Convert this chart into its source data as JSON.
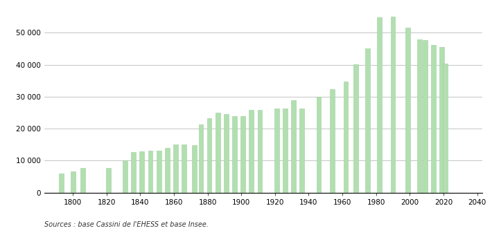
{
  "years": [
    1793,
    1800,
    1806,
    1821,
    1831,
    1836,
    1841,
    1846,
    1851,
    1856,
    1861,
    1866,
    1872,
    1876,
    1881,
    1886,
    1891,
    1896,
    1901,
    1906,
    1911,
    1921,
    1926,
    1931,
    1936,
    1946,
    1954,
    1962,
    1968,
    1975,
    1982,
    1990,
    1999,
    2006,
    2009,
    2014,
    2019,
    2021
  ],
  "values": [
    6000,
    6700,
    7700,
    7800,
    10000,
    12600,
    13000,
    13200,
    13200,
    14000,
    15000,
    15000,
    14800,
    21300,
    23200,
    25000,
    24500,
    24000,
    24000,
    25800,
    25800,
    26400,
    26400,
    28900,
    26400,
    30000,
    32300,
    34700,
    40100,
    45000,
    54900,
    55000,
    51500,
    48000,
    47600,
    46200,
    45600,
    40300
  ],
  "bar_color": "#b2dfb0",
  "bar_edge_color": "#9ecf9c",
  "background_color": "#ffffff",
  "grid_color": "#bbbbbb",
  "ylabel_values": [
    0,
    10000,
    20000,
    30000,
    40000,
    50000
  ],
  "xtick_values": [
    1800,
    1820,
    1840,
    1860,
    1880,
    1900,
    1920,
    1940,
    1960,
    1980,
    2000,
    2020,
    2040
  ],
  "source_text": "Sources : base Cassini de l'EHESS et base Insee.",
  "ylim": [
    0,
    58000
  ],
  "xlim": [
    1783,
    2043
  ]
}
